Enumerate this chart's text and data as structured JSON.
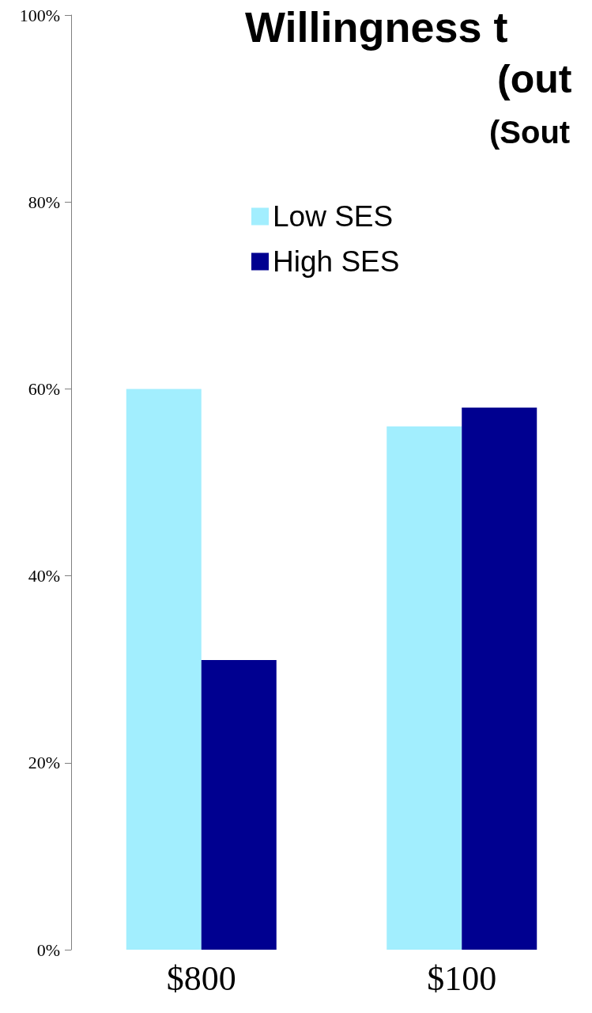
{
  "chart_data": {
    "type": "bar",
    "title": "Willingness t",
    "subtitle": "(out",
    "annotations": [
      "(Sout"
    ],
    "categories": [
      "$800",
      "$100"
    ],
    "series": [
      {
        "name": "Low SES",
        "color": "#a2eefe",
        "values": [
          60,
          56
        ]
      },
      {
        "name": "High SES",
        "color": "#000090",
        "values": [
          31,
          58
        ]
      }
    ],
    "ylim": [
      0,
      100
    ],
    "yticks": [
      {
        "value": 0,
        "label": "0%"
      },
      {
        "value": 20,
        "label": "20%"
      },
      {
        "value": 40,
        "label": "40%"
      },
      {
        "value": 60,
        "label": "60%"
      },
      {
        "value": 80,
        "label": "80%"
      },
      {
        "value": 100,
        "label": "100%"
      }
    ],
    "grid": false,
    "legend": "top left"
  }
}
